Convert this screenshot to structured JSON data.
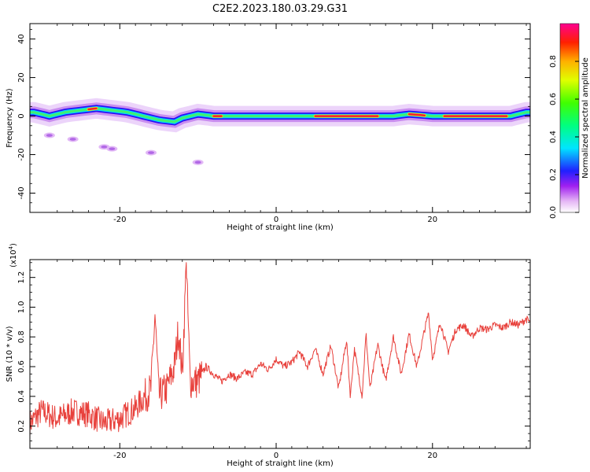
{
  "title": "C2E2.2023.180.03.29.G31",
  "chart_data": [
    {
      "type": "heatmap",
      "xlabel": "Height of straight line (km)",
      "ylabel": "Frequency (Hz)",
      "xlim": [
        -31.5,
        32.5
      ],
      "ylim": [
        -50,
        48
      ],
      "x_ticks": [
        -20,
        0,
        20
      ],
      "y_ticks": [
        -40,
        -20,
        0,
        20,
        40
      ],
      "colorbar": {
        "label": "Normalized spectral amplitude",
        "range": [
          0,
          1
        ],
        "ticks": [
          "0.0",
          "0.2",
          "0.4",
          "0.6",
          "0.8"
        ]
      },
      "ridge": [
        [
          -31,
          2
        ],
        [
          -29,
          0
        ],
        [
          -27,
          2
        ],
        [
          -25,
          3
        ],
        [
          -23,
          4
        ],
        [
          -21,
          3
        ],
        [
          -19,
          2
        ],
        [
          -17,
          0
        ],
        [
          -15,
          -2
        ],
        [
          -13,
          -3
        ],
        [
          -12,
          -1
        ],
        [
          -10,
          1
        ],
        [
          -8,
          0
        ],
        [
          -5,
          0
        ],
        [
          0,
          0
        ],
        [
          5,
          0
        ],
        [
          10,
          0
        ],
        [
          15,
          0
        ],
        [
          17,
          1
        ],
        [
          20,
          0
        ],
        [
          25,
          0
        ],
        [
          30,
          0
        ],
        [
          32,
          2
        ]
      ],
      "strong_segments": [
        [
          -24,
          -23
        ],
        [
          -8,
          -7
        ],
        [
          5,
          13
        ],
        [
          17,
          19
        ],
        [
          21.5,
          29.5
        ]
      ],
      "outliers": [
        [
          -29,
          -10
        ],
        [
          -26,
          -12
        ],
        [
          -22,
          -16
        ],
        [
          -21,
          -17
        ],
        [
          -16,
          -19
        ],
        [
          -10,
          -24
        ]
      ]
    },
    {
      "type": "line",
      "xlabel": "Height of straight line (km)",
      "ylabel": "SNR (10 * v/v)",
      "y_multiplier": "(x10⁴)",
      "y_multiplier_base": "(x10",
      "y_multiplier_exp": "4",
      "y_multiplier_close": ")",
      "xlim": [
        -31.5,
        32.5
      ],
      "ylim": [
        0.05,
        1.32
      ],
      "x_ticks": [
        -20,
        0,
        20
      ],
      "y_ticks": [
        0.2,
        0.4,
        0.6,
        0.8,
        1.0,
        1.2
      ],
      "series": [
        {
          "color": "#e8413c",
          "x": [
            -31.5,
            -30,
            -28,
            -26,
            -24,
            -22,
            -20,
            -18,
            -16,
            -15.5,
            -15,
            -14,
            -13,
            -12.5,
            -12,
            -11.5,
            -11,
            -10,
            -9,
            -8,
            -7,
            -6,
            -5,
            -4,
            -3,
            -2,
            -1,
            0,
            1,
            2,
            3,
            4,
            5,
            6,
            7,
            8,
            9,
            9.5,
            10,
            11,
            11.5,
            12,
            13,
            14,
            15,
            16,
            17,
            18,
            19,
            19.5,
            20,
            21,
            22,
            23,
            24,
            25,
            26,
            27,
            28,
            29,
            30,
            31,
            32,
            32.5
          ],
          "y": [
            0.22,
            0.3,
            0.25,
            0.3,
            0.28,
            0.22,
            0.25,
            0.32,
            0.45,
            0.95,
            0.4,
            0.45,
            0.6,
            0.85,
            0.55,
            1.3,
            0.5,
            0.5,
            0.6,
            0.55,
            0.5,
            0.55,
            0.52,
            0.56,
            0.55,
            0.62,
            0.58,
            0.65,
            0.6,
            0.63,
            0.7,
            0.6,
            0.72,
            0.55,
            0.74,
            0.45,
            0.78,
            0.4,
            0.72,
            0.4,
            0.82,
            0.45,
            0.75,
            0.5,
            0.8,
            0.55,
            0.82,
            0.6,
            0.85,
            0.96,
            0.65,
            0.9,
            0.7,
            0.85,
            0.88,
            0.8,
            0.86,
            0.85,
            0.88,
            0.86,
            0.9,
            0.88,
            0.92,
            0.9
          ]
        }
      ]
    }
  ]
}
